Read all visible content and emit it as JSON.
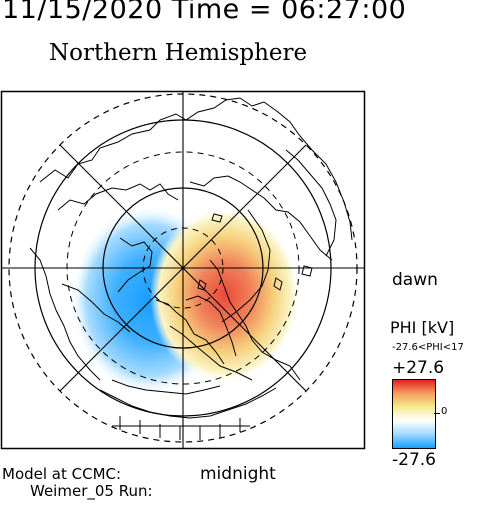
{
  "header": {
    "timestamp": "11/15/2020 Time = 06:27:00",
    "title": "Northern Hemisphere"
  },
  "map": {
    "projection": "polar stereographic, north pole at center",
    "orientation": {
      "right": "dawn",
      "bottom": "midnight"
    },
    "grid": "dashed latitude circles, radial meridian lines every 45 degrees",
    "potential_pattern": {
      "negative_cell": "blue, dusk/pre-midnight side (left)",
      "positive_cell": "red, dawn side (right)"
    }
  },
  "labels": {
    "dawn": "dawn",
    "midnight": "midnight",
    "model_line1": "Model at CCMC:",
    "model_line2": "Weimer_05 Run:"
  },
  "colorbar": {
    "title": "PHI [kV]",
    "range_text": "-27.6<PHI<17",
    "max_label": "+27.6",
    "zero_label": "0",
    "min_label": "-27.6",
    "max_value": 27.6,
    "min_value": -27.6,
    "colors": [
      "#1aa0ff",
      "#9fd8ff",
      "#ffffff",
      "#f5ec90",
      "#f4a060",
      "#e02020"
    ]
  }
}
